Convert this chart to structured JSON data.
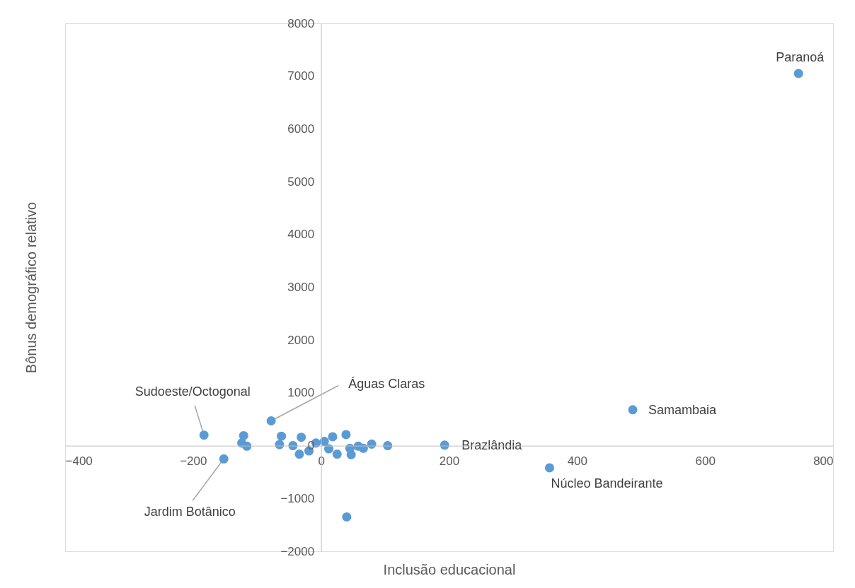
{
  "chart_data": {
    "type": "scatter",
    "xlabel": "Inclusão educacional",
    "ylabel": "Bônus demográfico relativo",
    "x": [
      746,
      487,
      193,
      357,
      -183,
      -78,
      -152,
      -121,
      -124,
      -116,
      -62,
      -65,
      -44,
      -31,
      -34,
      -19,
      -8,
      5,
      12,
      18,
      25,
      39,
      45,
      47,
      58,
      66,
      79,
      104,
      40
    ],
    "values": [
      7050,
      680,
      10,
      -420,
      200,
      470,
      -250,
      190,
      50,
      -10,
      180,
      20,
      0,
      160,
      -160,
      -100,
      50,
      80,
      -60,
      170,
      -160,
      210,
      -50,
      -170,
      -10,
      -50,
      30,
      0,
      -1350
    ],
    "color": "#5b9bd5",
    "marker": "circle",
    "xlim": [
      -400,
      800
    ],
    "xticks": [
      -400,
      -200,
      0,
      200,
      400,
      600,
      800
    ],
    "ylim": [
      -2000,
      8000
    ],
    "yticks": [
      -2000,
      -1000,
      0,
      1000,
      2000,
      3000,
      4000,
      5000,
      6000,
      7000,
      8000
    ],
    "grid": false,
    "legend": false,
    "annotations": [
      {
        "text": "Paranoá",
        "x": 746,
        "y": 7050
      },
      {
        "text": "Samambaia",
        "x": 487,
        "y": 680
      },
      {
        "text": "Brazlândia",
        "x": 193,
        "y": 10
      },
      {
        "text": "Núcleo Bandeirante",
        "x": 357,
        "y": -420
      },
      {
        "text": "Sudoeste/Octogonal",
        "x": -183,
        "y": 200
      },
      {
        "text": "Águas Claras",
        "x": -78,
        "y": 470
      },
      {
        "text": "Jardim Botânico",
        "x": -152,
        "y": -250
      }
    ]
  }
}
